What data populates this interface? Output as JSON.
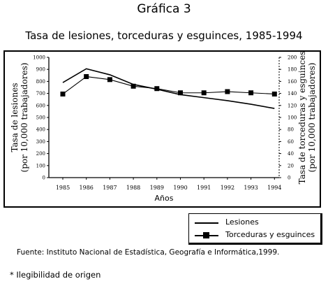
{
  "header": {
    "title": "Gráfica 3",
    "subtitle": "Tasa de lesiones, torceduras y esguinces, 1985-1994"
  },
  "chart_data": {
    "type": "line",
    "x": [
      "1985",
      "1986",
      "1987",
      "1988",
      "1989",
      "1990",
      "1991",
      "1992",
      "1993",
      "1994"
    ],
    "xlabel": "Años",
    "ylabel_left": [
      "Tasa de lesiones",
      "(por 10,000 trabajadores)"
    ],
    "ylabel_right": [
      "Tasa de torceduras y esguinces",
      "(por 10,000 trabajadores)"
    ],
    "left_ticks": [
      "0",
      "100",
      "200",
      "300",
      "400",
      "500",
      "600",
      "700",
      "800",
      "900",
      "1000"
    ],
    "right_ticks": [
      "0",
      "20",
      "40",
      "60",
      "80",
      "100",
      "120",
      "140",
      "160",
      "180",
      "200"
    ],
    "ylim_left": [
      0,
      1000
    ],
    "ylim_right": [
      0,
      200
    ],
    "series": [
      {
        "name": "Lesiones",
        "axis": "left",
        "style": "solid",
        "values": [
          790,
          905,
          855,
          775,
          735,
          690,
          665,
          640,
          610,
          575
        ]
      },
      {
        "name": "Torceduras y esguinces",
        "axis": "right",
        "style": "solid-square-markers",
        "values": [
          139,
          168,
          163,
          152,
          148,
          141,
          141,
          143,
          141,
          139
        ]
      }
    ],
    "grid": false,
    "legend_position": "bottom-right, outside plot"
  },
  "legend": {
    "items": [
      "Lesiones",
      "Torceduras y esguinces"
    ]
  },
  "footer": {
    "source": "Fuente: Instituto Nacional de Estadística, Geografía e Informática,1999.",
    "note": "* Ilegibilidad de origen"
  }
}
